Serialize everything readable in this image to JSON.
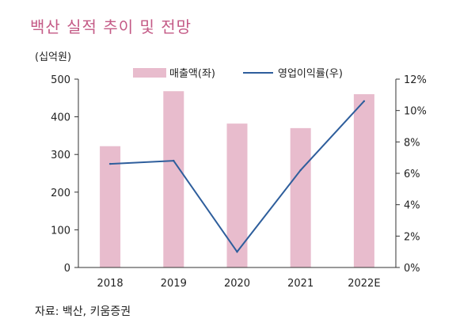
{
  "title": "백산 실적 추이 및 전망",
  "source": "자료: 백산, 키움증권",
  "chart_data": {
    "type": "bar",
    "categories": [
      "2018",
      "2019",
      "2020",
      "2021",
      "2022E"
    ],
    "left_axis_unit": "(십억원)",
    "left_ylim": [
      0,
      500
    ],
    "left_ticks": [
      "0",
      "100",
      "200",
      "300",
      "400",
      "500"
    ],
    "right_ylim": [
      0,
      12
    ],
    "right_ticks": [
      "0%",
      "2%",
      "4%",
      "6%",
      "8%",
      "10%",
      "12%"
    ],
    "series": [
      {
        "name": "매출액(좌)",
        "type": "bar",
        "axis": "left",
        "color": "#e8bccd",
        "values": [
          322,
          468,
          382,
          370,
          460
        ]
      },
      {
        "name": "영업이익률(우)",
        "type": "line",
        "axis": "right",
        "color": "#2e5e9c",
        "values": [
          6.6,
          6.8,
          1.0,
          6.2,
          10.6
        ]
      }
    ],
    "grid": false,
    "legend": "top"
  }
}
